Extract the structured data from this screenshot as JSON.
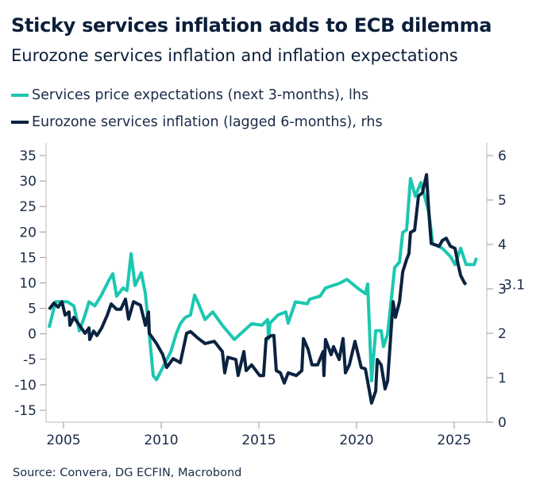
{
  "title": "Sticky services inflation adds to ECB dilemma",
  "subtitle": "Eurozone services inflation and inflation expectations",
  "source": "Source: Convera, DG ECFIN, Macrobond",
  "chart_data": {
    "type": "line",
    "title": "Sticky services inflation adds to ECB dilemma",
    "subtitle": "Eurozone services inflation and inflation expectations",
    "legend_position": "top-left",
    "grid": false,
    "x_ticks": [
      "2005",
      "2010",
      "2015",
      "2020",
      "2025"
    ],
    "xlim": [
      2004.1,
      2026.6
    ],
    "y_left": {
      "lim": [
        -15,
        35
      ],
      "ticks": [
        "-15",
        "-10",
        "-5",
        "0",
        "5",
        "10",
        "15",
        "20",
        "25",
        "30",
        "35"
      ]
    },
    "y_right": {
      "lim": [
        0,
        6
      ],
      "ticks": [
        "0",
        "1",
        "2",
        "3",
        "4",
        "5",
        "6"
      ]
    },
    "end_label": "3.1",
    "series": [
      {
        "name": "Services price expectations (next 3-months), lhs",
        "axis": "left",
        "color": "#1cc7b1",
        "points": [
          [
            2004.26,
            1.2
          ],
          [
            2004.59,
            6.3
          ],
          [
            2005.2,
            6.3
          ],
          [
            2005.53,
            5.5
          ],
          [
            2005.81,
            0.6
          ],
          [
            2006.1,
            3.7
          ],
          [
            2006.3,
            6.3
          ],
          [
            2006.6,
            5.5
          ],
          [
            2006.91,
            7.4
          ],
          [
            2007.32,
            10.5
          ],
          [
            2007.52,
            11.8
          ],
          [
            2007.72,
            7.4
          ],
          [
            2008.05,
            9
          ],
          [
            2008.25,
            8.5
          ],
          [
            2008.46,
            15.7
          ],
          [
            2008.66,
            9.5
          ],
          [
            2008.98,
            12
          ],
          [
            2009.19,
            7.9
          ],
          [
            2009.39,
            0
          ],
          [
            2009.59,
            -8.2
          ],
          [
            2009.76,
            -9
          ],
          [
            2010.0,
            -7.2
          ],
          [
            2010.49,
            -3.5
          ],
          [
            2010.77,
            0
          ],
          [
            2010.98,
            2
          ],
          [
            2011.22,
            3.2
          ],
          [
            2011.5,
            3.7
          ],
          [
            2011.71,
            7.6
          ],
          [
            2011.91,
            5.9
          ],
          [
            2012.24,
            2.8
          ],
          [
            2012.64,
            4.3
          ],
          [
            2013.13,
            1.7
          ],
          [
            2013.74,
            -1.1
          ],
          [
            2014.23,
            0.6
          ],
          [
            2014.63,
            2
          ],
          [
            2015.16,
            1.7
          ],
          [
            2015.45,
            2.8
          ],
          [
            2015.49,
            -1
          ],
          [
            2015.57,
            2.1
          ],
          [
            2015.98,
            3.7
          ],
          [
            2016.38,
            4.3
          ],
          [
            2016.5,
            2.1
          ],
          [
            2016.87,
            6.3
          ],
          [
            2017.48,
            5.9
          ],
          [
            2017.6,
            6.8
          ],
          [
            2018.13,
            7.4
          ],
          [
            2018.41,
            9
          ],
          [
            2019.11,
            9.9
          ],
          [
            2019.51,
            10.7
          ],
          [
            2020.04,
            9
          ],
          [
            2020.45,
            7.9
          ],
          [
            2020.57,
            9.8
          ],
          [
            2020.77,
            -9.2
          ],
          [
            2020.98,
            0.6
          ],
          [
            2021.26,
            0.6
          ],
          [
            2021.38,
            -2.5
          ],
          [
            2021.59,
            0
          ],
          [
            2021.95,
            13
          ],
          [
            2022.2,
            14.1
          ],
          [
            2022.36,
            19.9
          ],
          [
            2022.56,
            20.4
          ],
          [
            2022.76,
            30.5
          ],
          [
            2023.01,
            27
          ],
          [
            2023.29,
            29.7
          ],
          [
            2023.7,
            23.9
          ],
          [
            2023.9,
            17.7
          ],
          [
            2024.39,
            16.8
          ],
          [
            2024.8,
            15.2
          ],
          [
            2025.04,
            13.6
          ],
          [
            2025.33,
            16.8
          ],
          [
            2025.61,
            13.6
          ],
          [
            2026.02,
            13.6
          ],
          [
            2026.14,
            14.9
          ]
        ]
      },
      {
        "name": "Eurozone services inflation (lagged 6-months), rhs",
        "axis": "right",
        "color": "#0b2240",
        "points": [
          [
            2004.26,
            2.54
          ],
          [
            2004.51,
            2.68
          ],
          [
            2004.72,
            2.59
          ],
          [
            2004.92,
            2.71
          ],
          [
            2005.08,
            2.41
          ],
          [
            2005.28,
            2.48
          ],
          [
            2005.33,
            2.18
          ],
          [
            2005.53,
            2.36
          ],
          [
            2006.1,
            2.0
          ],
          [
            2006.3,
            2.12
          ],
          [
            2006.34,
            1.86
          ],
          [
            2006.54,
            2.05
          ],
          [
            2006.71,
            1.95
          ],
          [
            2006.95,
            2.12
          ],
          [
            2007.24,
            2.41
          ],
          [
            2007.44,
            2.66
          ],
          [
            2007.72,
            2.54
          ],
          [
            2007.93,
            2.54
          ],
          [
            2008.17,
            2.77
          ],
          [
            2008.33,
            2.32
          ],
          [
            2008.58,
            2.71
          ],
          [
            2008.94,
            2.63
          ],
          [
            2009.19,
            2.18
          ],
          [
            2009.35,
            2.48
          ],
          [
            2009.39,
            2.0
          ],
          [
            2009.76,
            1.77
          ],
          [
            2010.08,
            1.52
          ],
          [
            2010.28,
            1.23
          ],
          [
            2010.61,
            1.43
          ],
          [
            2010.98,
            1.34
          ],
          [
            2011.3,
            2.0
          ],
          [
            2011.5,
            2.04
          ],
          [
            2011.91,
            1.88
          ],
          [
            2012.24,
            1.77
          ],
          [
            2012.72,
            1.82
          ],
          [
            2013.13,
            1.59
          ],
          [
            2013.25,
            1.11
          ],
          [
            2013.41,
            1.46
          ],
          [
            2013.82,
            1.41
          ],
          [
            2013.94,
            1.05
          ],
          [
            2014.23,
            1.59
          ],
          [
            2014.35,
            1.16
          ],
          [
            2014.63,
            1.29
          ],
          [
            2015.04,
            1.05
          ],
          [
            2015.24,
            1.05
          ],
          [
            2015.37,
            1.88
          ],
          [
            2015.65,
            1.95
          ],
          [
            2015.77,
            1.95
          ],
          [
            2015.89,
            1.16
          ],
          [
            2016.1,
            1.11
          ],
          [
            2016.3,
            0.88
          ],
          [
            2016.5,
            1.11
          ],
          [
            2016.91,
            1.05
          ],
          [
            2017.2,
            1.16
          ],
          [
            2017.28,
            1.88
          ],
          [
            2017.52,
            1.64
          ],
          [
            2017.72,
            1.29
          ],
          [
            2018.01,
            1.29
          ],
          [
            2018.29,
            1.59
          ],
          [
            2018.33,
            1.05
          ],
          [
            2018.41,
            1.86
          ],
          [
            2018.7,
            1.52
          ],
          [
            2018.82,
            1.7
          ],
          [
            2019.11,
            1.41
          ],
          [
            2019.31,
            1.88
          ],
          [
            2019.43,
            1.11
          ],
          [
            2019.63,
            1.29
          ],
          [
            2019.92,
            1.82
          ],
          [
            2020.24,
            1.23
          ],
          [
            2020.45,
            1.2
          ],
          [
            2020.77,
            0.43
          ],
          [
            2020.98,
            0.7
          ],
          [
            2021.06,
            1.41
          ],
          [
            2021.26,
            1.29
          ],
          [
            2021.46,
            0.75
          ],
          [
            2021.59,
            0.93
          ],
          [
            2021.87,
            2.71
          ],
          [
            2021.99,
            2.36
          ],
          [
            2022.2,
            2.71
          ],
          [
            2022.36,
            3.38
          ],
          [
            2022.56,
            3.66
          ],
          [
            2022.68,
            3.79
          ],
          [
            2022.76,
            4.27
          ],
          [
            2022.97,
            4.32
          ],
          [
            2023.17,
            5.09
          ],
          [
            2023.37,
            5.16
          ],
          [
            2023.58,
            5.57
          ],
          [
            2023.7,
            4.73
          ],
          [
            2023.82,
            4.02
          ],
          [
            2024.23,
            3.96
          ],
          [
            2024.39,
            4.09
          ],
          [
            2024.59,
            4.14
          ],
          [
            2024.8,
            3.96
          ],
          [
            2025.04,
            3.91
          ],
          [
            2025.2,
            3.55
          ],
          [
            2025.33,
            3.3
          ],
          [
            2025.53,
            3.13
          ],
          [
            2025.61,
            3.1
          ]
        ]
      }
    ]
  }
}
